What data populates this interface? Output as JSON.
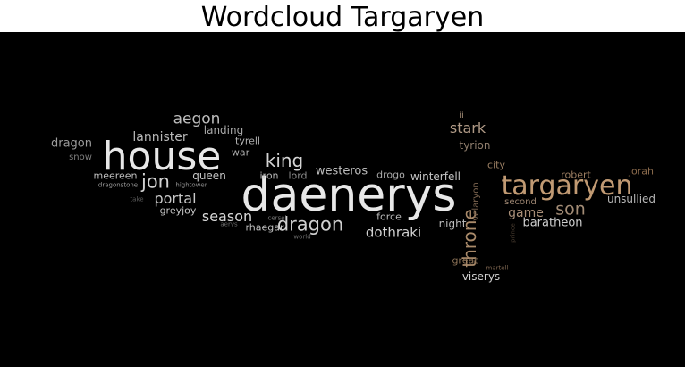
{
  "title": "Wordcloud Targaryen",
  "words": [
    {
      "text": "daenerys",
      "color": "#e8e8e8"
    },
    {
      "text": "house",
      "color": "#e8e8e8"
    },
    {
      "text": "targaryen",
      "color": "#c19a73"
    },
    {
      "text": "dragon",
      "color": "#cfcfcf"
    },
    {
      "text": "king",
      "color": "#d4d4d4"
    },
    {
      "text": "jon",
      "color": "#d2d2d2"
    },
    {
      "text": "throne",
      "color": "#a98a6a"
    },
    {
      "text": "son",
      "color": "#a38c76"
    },
    {
      "text": "aegon",
      "color": "#bdbdbd"
    },
    {
      "text": "portal",
      "color": "#c8c8c8"
    },
    {
      "text": "stark",
      "color": "#b09a86"
    },
    {
      "text": "season",
      "color": "#d6d6d6"
    },
    {
      "text": "dothraki",
      "color": "#d0d0d0"
    },
    {
      "text": "lannister",
      "color": "#b9b9b9"
    },
    {
      "text": "westeros",
      "color": "#bdbdbd"
    },
    {
      "text": "game",
      "color": "#a88e77"
    },
    {
      "text": "baratheon",
      "color": "#cfcfcf"
    },
    {
      "text": "dragon",
      "color": "#9d9d9d"
    },
    {
      "text": "landing",
      "color": "#a8a8a8"
    },
    {
      "text": "tyrion",
      "color": "#8f7d6c"
    },
    {
      "text": "queen",
      "color": "#c6c6c6"
    },
    {
      "text": "night",
      "color": "#bcbcbc"
    },
    {
      "text": "winterfell",
      "color": "#c6c6c6"
    },
    {
      "text": "unsullied",
      "color": "#b6b6b6"
    },
    {
      "text": "viserys",
      "color": "#cfcfcf"
    },
    {
      "text": "robert",
      "color": "#9a7c60"
    },
    {
      "text": "jorah",
      "color": "#8a6a4c"
    },
    {
      "text": "great",
      "color": "#8e7458"
    },
    {
      "text": "rhaegar",
      "color": "#c2c2c2"
    },
    {
      "text": "greyjoy",
      "color": "#c6c6c6"
    },
    {
      "text": "city",
      "color": "#9b7f63"
    },
    {
      "text": "force",
      "color": "#b9b9b9"
    },
    {
      "text": "tyrell",
      "color": "#b2b2b2"
    },
    {
      "text": "war",
      "color": "#acacac"
    },
    {
      "text": "iron",
      "color": "#b6b6b6"
    },
    {
      "text": "lord",
      "color": "#8e8e8e"
    },
    {
      "text": "drogo",
      "color": "#a9a9a9"
    },
    {
      "text": "meereen",
      "color": "#c0c0c0"
    },
    {
      "text": "second",
      "color": "#9b8470"
    },
    {
      "text": "velaryon",
      "color": "#7c6550"
    },
    {
      "text": "ii",
      "color": "#a08a74"
    },
    {
      "text": "snow",
      "color": "#7f7f7f"
    },
    {
      "text": "dragonstone",
      "color": "#9a9a9a"
    },
    {
      "text": "hightower",
      "color": "#8f8f8f"
    },
    {
      "text": "take",
      "color": "#5d5d5d"
    },
    {
      "text": "cersei",
      "color": "#7a7a7a"
    },
    {
      "text": "aerys",
      "color": "#6a6a6a"
    },
    {
      "text": "world",
      "color": "#6e6e6e"
    },
    {
      "text": "martell",
      "color": "#7d6550"
    },
    {
      "text": "prince",
      "color": "#4a3d30"
    }
  ]
}
